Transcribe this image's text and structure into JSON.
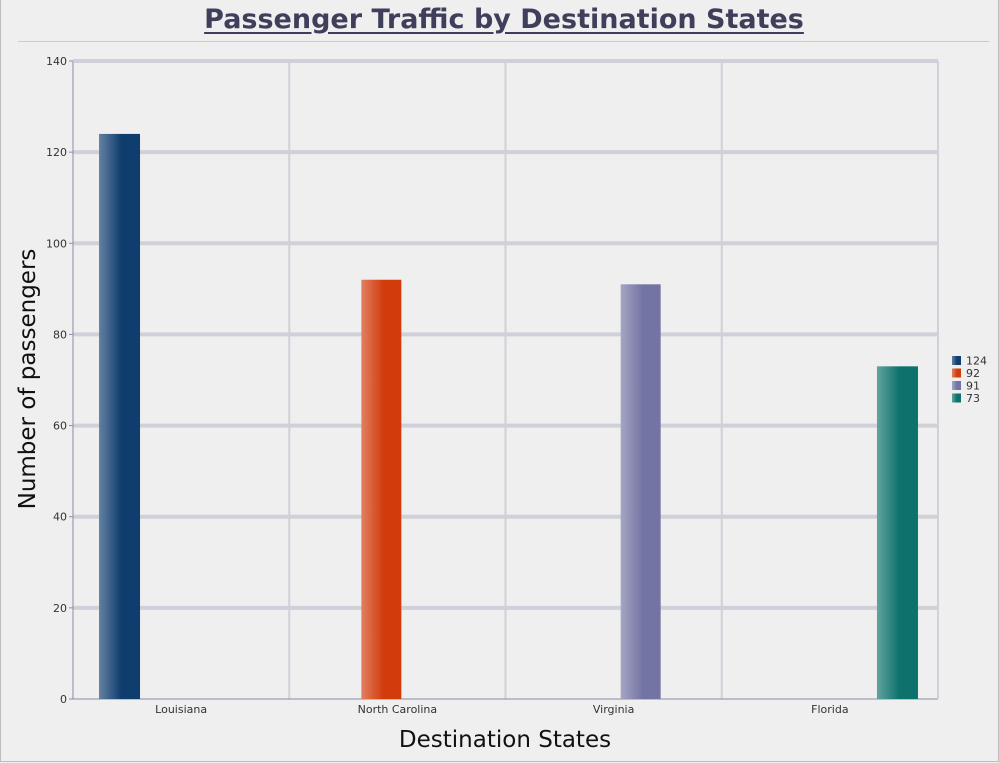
{
  "chart_data": {
    "type": "bar",
    "title": "Passenger Traffic by Destination States",
    "xlabel": "Destination States",
    "ylabel": "Number of passengers",
    "categories": [
      "Louisiana",
      "North Carolina",
      "Virginia",
      "Florida"
    ],
    "values": [
      124,
      92,
      91,
      73
    ],
    "colors": [
      "#0f3d6e",
      "#d23c0c",
      "#7474a4",
      "#0d716c"
    ],
    "ylim": [
      0,
      140
    ],
    "yticks": [
      0,
      20,
      40,
      60,
      80,
      100,
      120,
      140
    ],
    "grid": true,
    "legend": {
      "placement": "right",
      "entries": [
        "124",
        "92",
        "91",
        "73"
      ]
    }
  }
}
